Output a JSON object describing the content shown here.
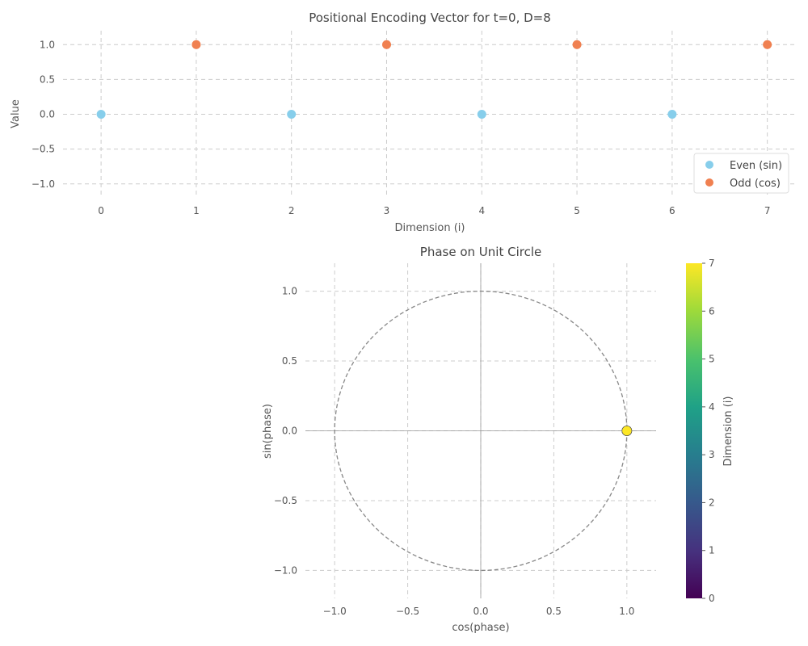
{
  "chart_data": [
    {
      "type": "scatter",
      "title": "Positional Encoding Vector for t=0, D=8",
      "xlabel": "Dimension (i)",
      "ylabel": "Value",
      "xlim": [
        -0.4,
        7.3
      ],
      "ylim": [
        -1.2,
        1.2
      ],
      "xticks": [
        0,
        1,
        2,
        3,
        4,
        5,
        6,
        7
      ],
      "yticks": [
        1.0,
        0.5,
        0.0,
        -0.5,
        -1.0
      ],
      "ytick_labels": [
        "1.0",
        "0.5",
        "0.0",
        "−0.5",
        "−1.0"
      ],
      "grid": true,
      "legend_position": "lower-right",
      "series": [
        {
          "name": "Even (sin)",
          "color": "#87ceeb",
          "x": [
            0,
            2,
            4,
            6
          ],
          "y": [
            0.0,
            0.0,
            0.0,
            0.0
          ]
        },
        {
          "name": "Odd (cos)",
          "color": "#f08050",
          "x": [
            1,
            3,
            5,
            7
          ],
          "y": [
            1.0,
            1.0,
            1.0,
            1.0
          ]
        }
      ]
    },
    {
      "type": "scatter",
      "title": "Phase on Unit Circle",
      "xlabel": "cos(phase)",
      "ylabel": "sin(phase)",
      "xlim": [
        -1.2,
        1.2
      ],
      "ylim": [
        -1.2,
        1.2
      ],
      "xticks": [
        -1.0,
        -0.5,
        0.0,
        0.5,
        1.0
      ],
      "xtick_labels": [
        "−1.0",
        "−0.5",
        "0.0",
        "0.5",
        "1.0"
      ],
      "yticks": [
        1.0,
        0.5,
        0.0,
        -0.5,
        -1.0
      ],
      "ytick_labels": [
        "1.0",
        "0.5",
        "0.0",
        "−0.5",
        "−1.0"
      ],
      "grid": true,
      "unit_circle": true,
      "points": [
        {
          "x": 1.0,
          "y": 0.0,
          "dimension": 0
        },
        {
          "x": 1.0,
          "y": 0.0,
          "dimension": 1
        },
        {
          "x": 1.0,
          "y": 0.0,
          "dimension": 2
        },
        {
          "x": 1.0,
          "y": 0.0,
          "dimension": 3
        },
        {
          "x": 1.0,
          "y": 0.0,
          "dimension": 4
        },
        {
          "x": 1.0,
          "y": 0.0,
          "dimension": 5
        },
        {
          "x": 1.0,
          "y": 0.0,
          "dimension": 6
        },
        {
          "x": 1.0,
          "y": 0.0,
          "dimension": 7
        }
      ],
      "colorbar": {
        "label": "Dimension (i)",
        "range": [
          0,
          7
        ],
        "ticks": [
          0,
          1,
          2,
          3,
          4,
          5,
          6,
          7
        ],
        "colormap": "viridis"
      }
    }
  ]
}
